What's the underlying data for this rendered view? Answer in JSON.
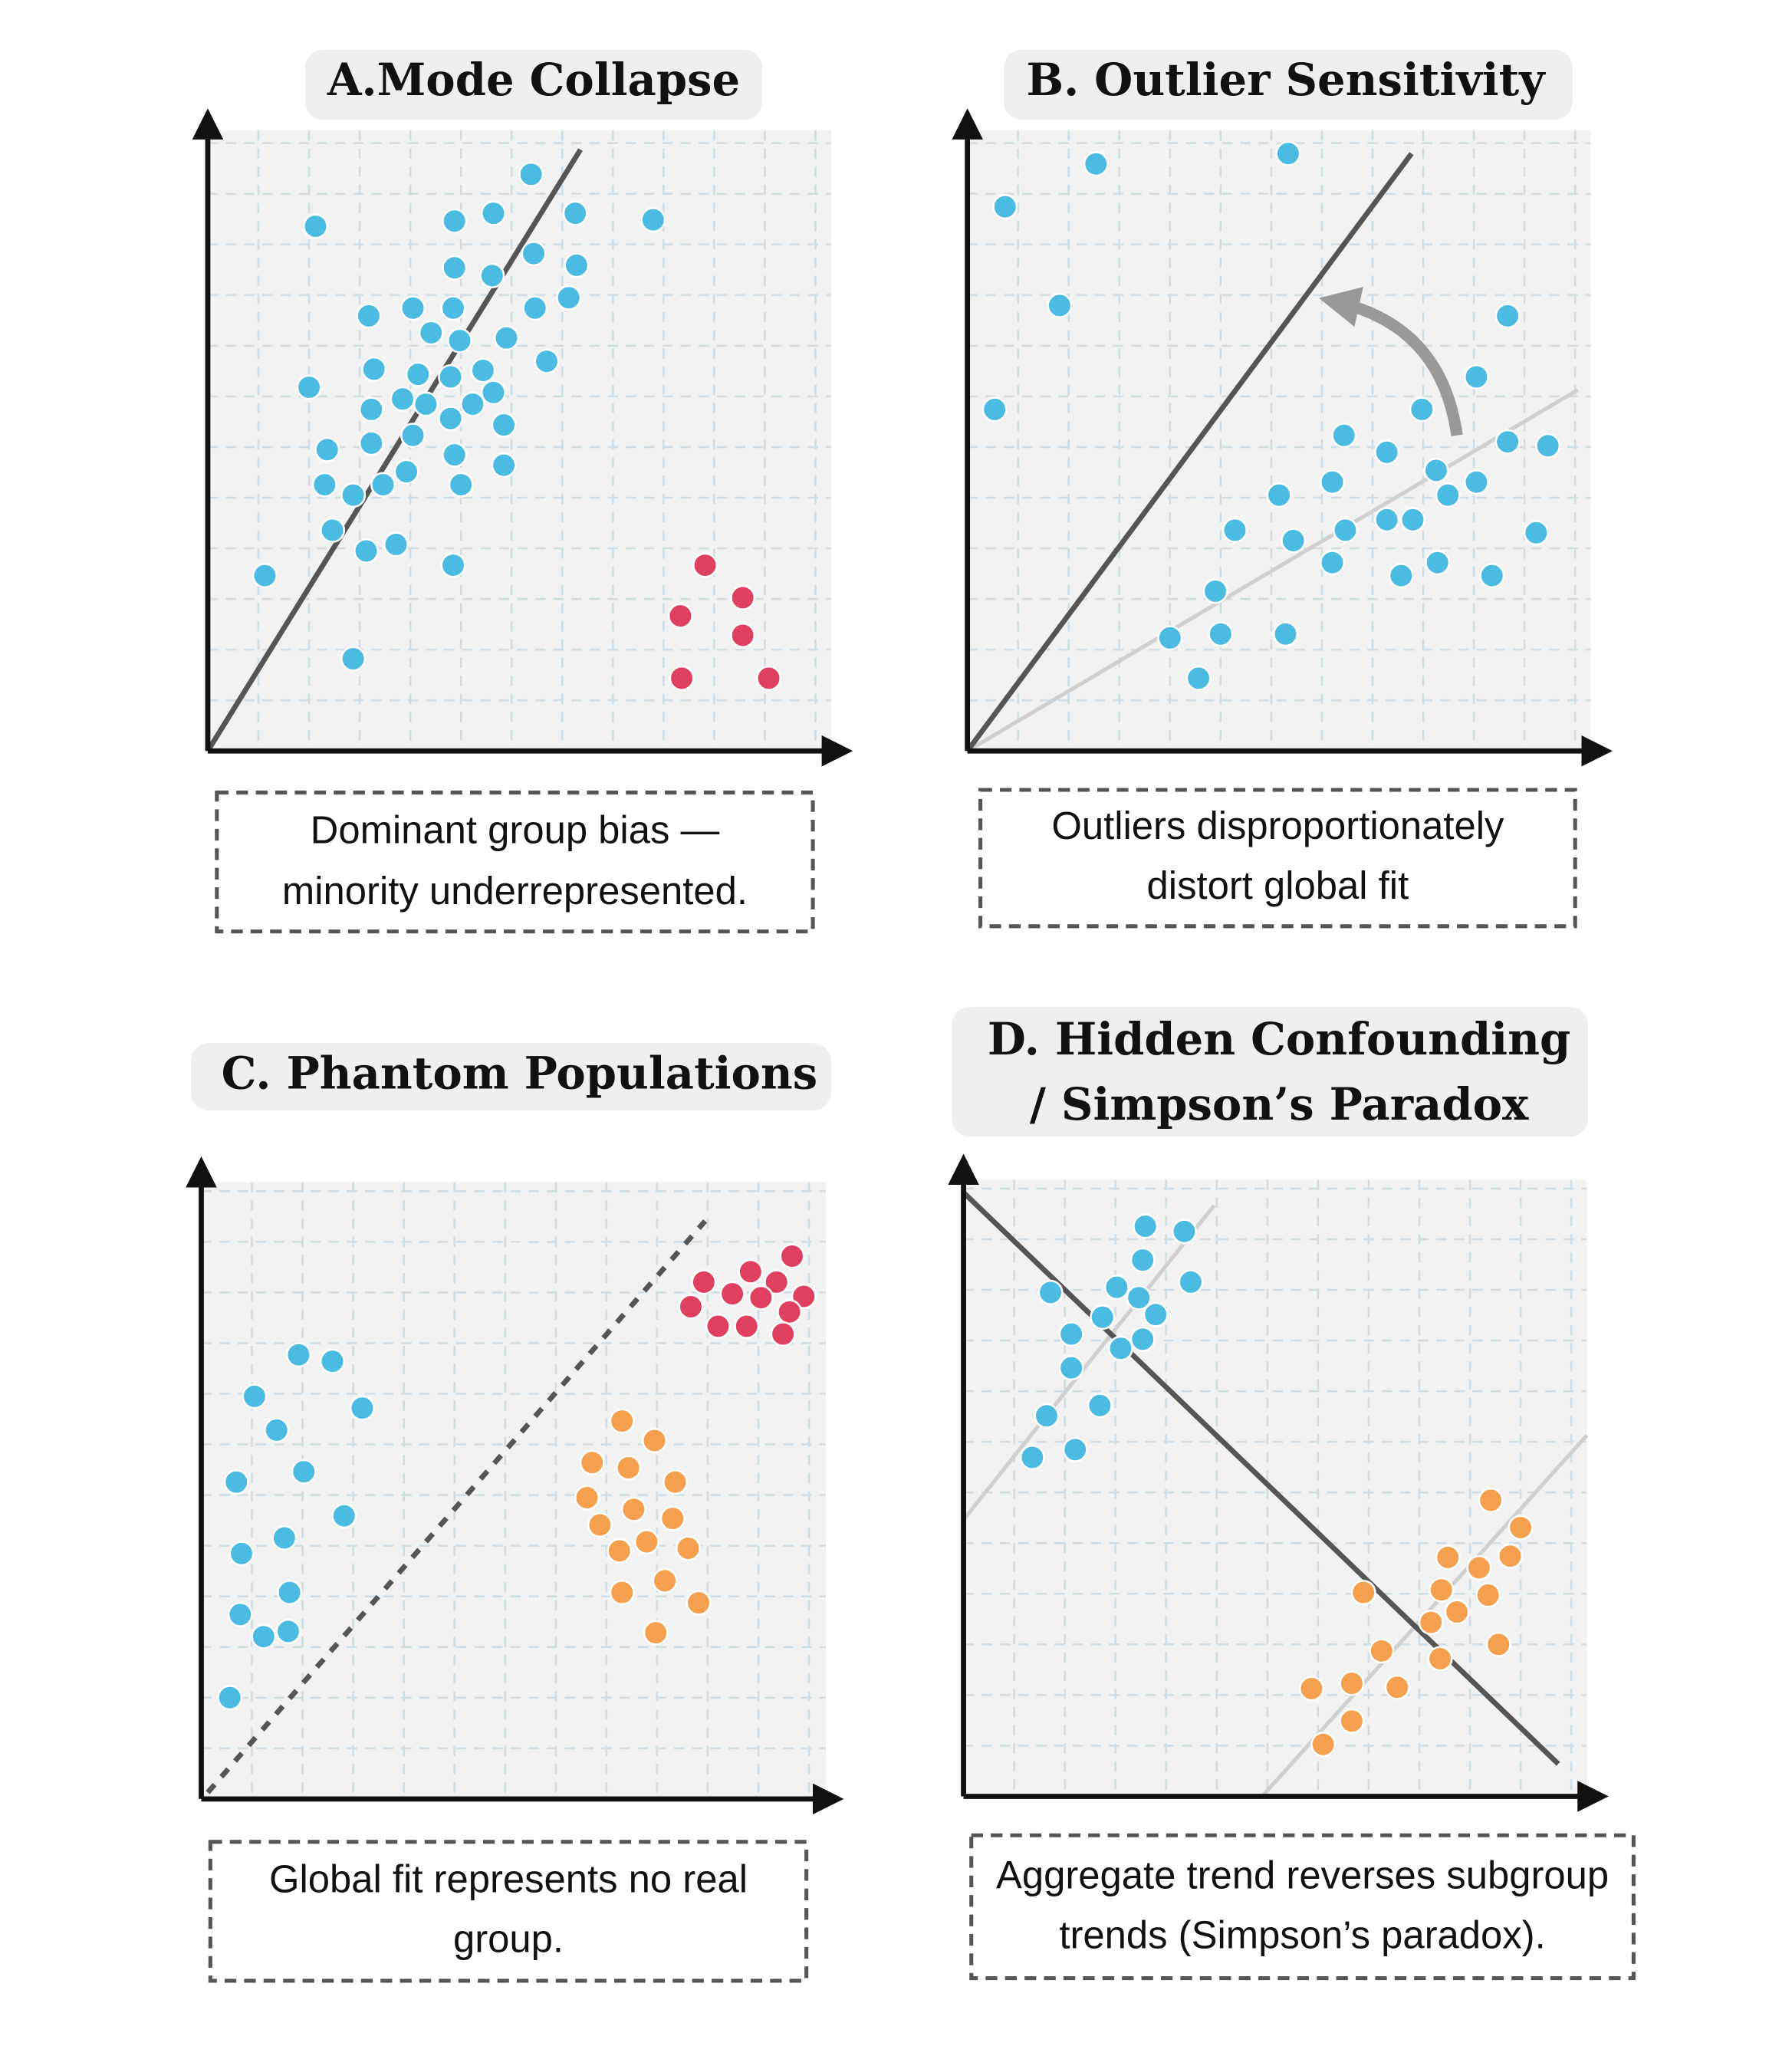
{
  "panels": [
    {
      "title": [
        "A.Mode Collapse"
      ],
      "caption": [
        "Dominant group bias —",
        "minority underrepresented."
      ]
    },
    {
      "title": [
        "B. Outlier Sensitivity"
      ],
      "caption": [
        "Outliers disproportionately",
        "distort global fit"
      ]
    },
    {
      "title": [
        "C. Phantom Populations"
      ],
      "caption": [
        "Global fit represents no real",
        "group."
      ]
    },
    {
      "title": [
        "D. Hidden Confounding",
        "/ Simpson’s Paradox"
      ],
      "caption": [
        "Aggregate trend reverses subgroup",
        "trends (Simpson’s paradox)."
      ]
    }
  ]
}
